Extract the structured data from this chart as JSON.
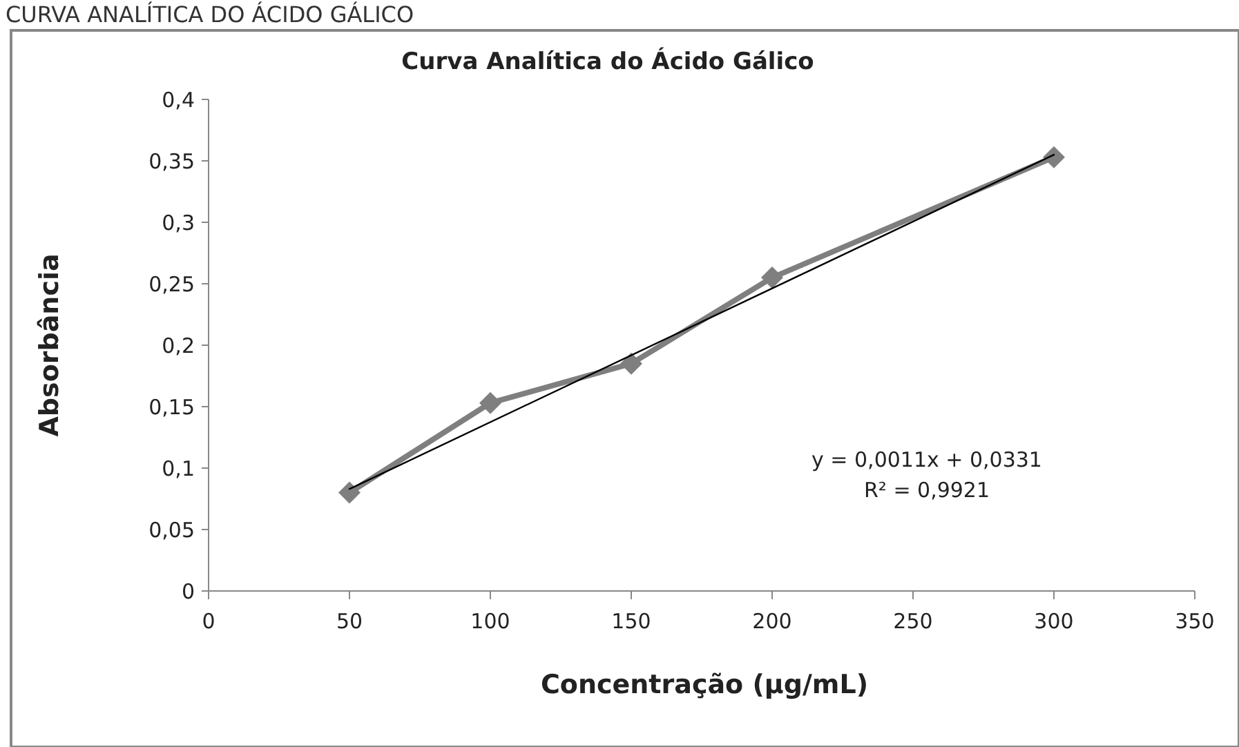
{
  "chart_data": {
    "type": "line",
    "title": "Curva Analítica do Ácido Gálico",
    "xlabel": "Concentração (µg/mL)",
    "ylabel": "Absorbância",
    "annotations": [
      "CURVA ANALÍTICA DO ÁCIDO GÁLICO",
      "y = 0,0011x + 0,0331\nR² = 0,9921"
    ],
    "x": [
      50,
      100,
      150,
      200,
      300
    ],
    "series": [
      {
        "color": "#7f7f7f",
        "values": [
          0.08,
          0.153,
          0.185,
          0.255,
          0.353
        ],
        "marker": "diamond"
      },
      {
        "color": "#000000",
        "x": [
          50,
          300
        ],
        "values": [
          0.083,
          0.355
        ],
        "marker": "none"
      }
    ],
    "xlim": [
      0,
      350
    ],
    "xticks": [
      0,
      50,
      100,
      150,
      200,
      250,
      300,
      350
    ],
    "ylim": [
      0,
      0.4
    ],
    "yticks": [
      {
        "value": 0,
        "label": "0"
      },
      {
        "value": 0.05,
        "label": "0,05"
      },
      {
        "value": 0.1,
        "label": "0,1"
      },
      {
        "value": 0.15,
        "label": "0,15"
      },
      {
        "value": 0.2,
        "label": "0,2"
      },
      {
        "value": 0.25,
        "label": "0,25"
      },
      {
        "value": 0.3,
        "label": "0,3"
      },
      {
        "value": 0.35,
        "label": "0,35"
      },
      {
        "value": 0.4,
        "label": "0,4"
      }
    ],
    "grid": false
  }
}
